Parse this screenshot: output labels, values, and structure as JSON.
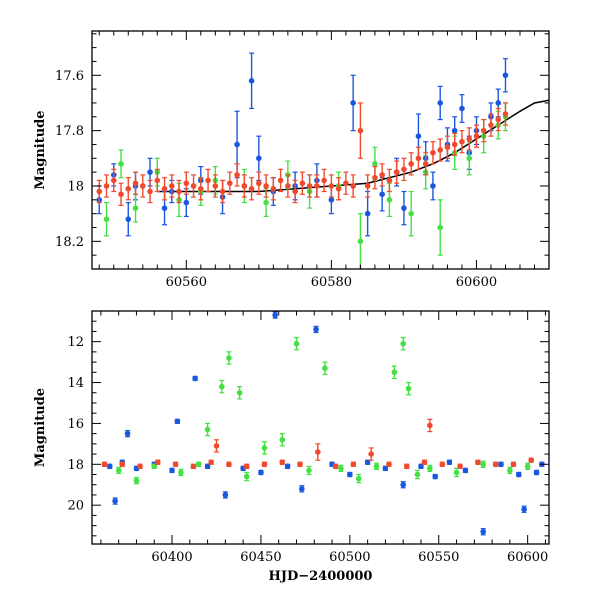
{
  "chart_data": [
    {
      "type": "scatter",
      "title": "",
      "xlabel": "",
      "ylabel": "Magnitude",
      "xlim": [
        60547,
        60610
      ],
      "ylim": [
        18.3,
        17.44
      ],
      "y_inverted": true,
      "x_ticks": [
        60560,
        60580,
        60600
      ],
      "y_ticks": [
        17.6,
        17.8,
        18,
        18.2
      ],
      "x_tick_labels": [
        "60560",
        "60580",
        "60600"
      ],
      "y_tick_labels": [
        "17.6",
        "17.8",
        "18",
        "18.2"
      ],
      "grid": false,
      "legend": "none",
      "series": [
        {
          "color": "#1a57e0",
          "marker": "circle-errorbar",
          "x": [
            60548,
            60550,
            60552,
            60553,
            60555,
            60557,
            60558,
            60560,
            60562,
            60565,
            60567,
            60569,
            60570,
            60572,
            60575,
            60578,
            60580,
            60583,
            60585,
            60587,
            60589,
            60590,
            60592,
            60593,
            60594,
            60595,
            60596,
            60597,
            60598,
            60599,
            60600,
            60602,
            60603,
            60604
          ],
          "y": [
            18.05,
            17.96,
            18.12,
            18.0,
            17.95,
            18.08,
            18.02,
            18.06,
            17.98,
            18.04,
            17.85,
            17.62,
            17.9,
            18.02,
            18.0,
            17.98,
            18.05,
            17.7,
            18.1,
            18.03,
            17.95,
            18.08,
            17.82,
            17.9,
            18.0,
            17.7,
            17.85,
            17.8,
            17.72,
            17.88,
            17.8,
            17.75,
            17.7,
            17.6
          ],
          "err": [
            0.05,
            0.04,
            0.06,
            0.05,
            0.05,
            0.06,
            0.04,
            0.05,
            0.05,
            0.06,
            0.12,
            0.1,
            0.08,
            0.05,
            0.05,
            0.06,
            0.05,
            0.1,
            0.08,
            0.06,
            0.05,
            0.06,
            0.08,
            0.06,
            0.05,
            0.06,
            0.06,
            0.05,
            0.05,
            0.06,
            0.05,
            0.05,
            0.05,
            0.06
          ]
        },
        {
          "color": "#44e044",
          "marker": "circle-errorbar",
          "x": [
            60549,
            60551,
            60553,
            60556,
            60559,
            60562,
            60564,
            60568,
            60571,
            60574,
            60577,
            60581,
            60584,
            60586,
            60588,
            60591,
            60593,
            60595,
            60597,
            60599,
            60601,
            60603,
            60604
          ],
          "y": [
            18.12,
            17.92,
            18.08,
            17.95,
            18.05,
            18.02,
            17.98,
            18.0,
            18.06,
            17.96,
            18.02,
            18.0,
            18.2,
            17.92,
            18.05,
            18.1,
            17.95,
            18.15,
            17.88,
            17.9,
            17.82,
            17.78,
            17.75
          ],
          "err": [
            0.06,
            0.05,
            0.05,
            0.05,
            0.06,
            0.05,
            0.05,
            0.06,
            0.05,
            0.05,
            0.06,
            0.05,
            0.1,
            0.06,
            0.06,
            0.08,
            0.06,
            0.1,
            0.06,
            0.06,
            0.06,
            0.05,
            0.05
          ]
        },
        {
          "color": "#f04a2e",
          "marker": "circle-errorbar",
          "x": [
            60548,
            60549,
            60550,
            60551,
            60552,
            60553,
            60554,
            60555,
            60556,
            60557,
            60558,
            60559,
            60560,
            60561,
            60562,
            60563,
            60564,
            60565,
            60566,
            60567,
            60568,
            60569,
            60570,
            60571,
            60572,
            60573,
            60574,
            60575,
            60576,
            60577,
            60578,
            60579,
            60580,
            60581,
            60582,
            60583,
            60584,
            60585,
            60586,
            60587,
            60588,
            60589,
            60590,
            60591,
            60592,
            60593,
            60594,
            60595,
            60596,
            60597,
            60598,
            60599,
            60600,
            60601,
            60602,
            60603,
            60604
          ],
          "y": [
            18.02,
            18.0,
            17.98,
            18.03,
            18.01,
            17.99,
            18.0,
            18.02,
            17.98,
            18.01,
            18.0,
            18.02,
            17.99,
            18.0,
            18.01,
            17.98,
            18.0,
            18.02,
            17.99,
            17.96,
            18.0,
            18.01,
            17.99,
            18.0,
            18.01,
            17.98,
            18.0,
            18.02,
            17.99,
            18.0,
            18.0,
            17.98,
            18.0,
            18.01,
            17.99,
            18.0,
            17.8,
            18.0,
            17.97,
            17.96,
            17.98,
            17.95,
            17.94,
            17.92,
            17.9,
            17.92,
            17.88,
            17.87,
            17.86,
            17.85,
            17.84,
            17.83,
            17.82,
            17.8,
            17.78,
            17.76,
            17.74
          ],
          "err": [
            0.04,
            0.04,
            0.04,
            0.04,
            0.04,
            0.04,
            0.04,
            0.04,
            0.04,
            0.04,
            0.04,
            0.04,
            0.04,
            0.04,
            0.04,
            0.04,
            0.04,
            0.04,
            0.04,
            0.04,
            0.04,
            0.04,
            0.04,
            0.04,
            0.04,
            0.04,
            0.04,
            0.04,
            0.04,
            0.04,
            0.04,
            0.04,
            0.04,
            0.04,
            0.04,
            0.04,
            0.1,
            0.04,
            0.04,
            0.04,
            0.04,
            0.04,
            0.04,
            0.04,
            0.04,
            0.04,
            0.04,
            0.04,
            0.04,
            0.04,
            0.04,
            0.04,
            0.04,
            0.04,
            0.04,
            0.04,
            0.04
          ]
        }
      ],
      "model_curve": {
        "color": "#000000",
        "x": [
          60556,
          60560,
          60565,
          60570,
          60575,
          60580,
          60585,
          60588,
          60591,
          60594,
          60597,
          60600,
          60603,
          60606,
          60608,
          60610
        ],
        "y": [
          18.02,
          18.02,
          18.02,
          18.02,
          18.01,
          18.0,
          17.99,
          17.97,
          17.95,
          17.92,
          17.88,
          17.83,
          17.78,
          17.73,
          17.7,
          17.69
        ]
      }
    },
    {
      "type": "scatter",
      "title": "",
      "xlabel": "HJD−2400000",
      "ylabel": "Magnitude",
      "xlim": [
        60355,
        60612
      ],
      "ylim": [
        21.9,
        10.5
      ],
      "y_inverted": true,
      "x_ticks": [
        60400,
        60450,
        60500,
        60550,
        60600
      ],
      "y_ticks": [
        12,
        14,
        16,
        18,
        20
      ],
      "x_tick_labels": [
        "60400",
        "60450",
        "60500",
        "60550",
        "60600"
      ],
      "y_tick_labels": [
        "12",
        "14",
        "16",
        "18",
        "20"
      ],
      "grid": false,
      "legend": "none",
      "series": [
        {
          "color": "#1a57e0",
          "marker": "circle-errorbar",
          "x": [
            60365,
            60368,
            60372,
            60375,
            60380,
            60390,
            60400,
            60403,
            60413,
            60420,
            60430,
            60440,
            60450,
            60458,
            60465,
            60473,
            60481,
            60490,
            60500,
            60510,
            60520,
            60530,
            60540,
            60548,
            60556,
            60565,
            60575,
            60585,
            60595,
            60598,
            60605,
            60608
          ],
          "y": [
            18.1,
            19.8,
            17.9,
            16.5,
            18.2,
            18.0,
            18.3,
            15.9,
            13.8,
            18.1,
            19.5,
            18.2,
            18.4,
            10.7,
            18.1,
            19.2,
            11.4,
            18.0,
            18.5,
            17.9,
            18.2,
            19.0,
            18.1,
            18.6,
            17.9,
            18.3,
            21.3,
            18.0,
            18.5,
            20.2,
            18.4,
            18.0
          ],
          "err": [
            0.1,
            0.15,
            0.1,
            0.15,
            0.1,
            0.1,
            0.1,
            0.1,
            0.1,
            0.1,
            0.15,
            0.1,
            0.1,
            0.15,
            0.1,
            0.15,
            0.15,
            0.1,
            0.1,
            0.1,
            0.1,
            0.15,
            0.1,
            0.1,
            0.1,
            0.1,
            0.15,
            0.1,
            0.1,
            0.15,
            0.1,
            0.1
          ]
        },
        {
          "color": "#44e044",
          "marker": "circle-errorbar",
          "x": [
            60370,
            60380,
            60390,
            60405,
            60415,
            60420,
            60428,
            60432,
            60438,
            60442,
            60452,
            60462,
            60470,
            60477,
            60486,
            60495,
            60505,
            60515,
            60525,
            60530,
            60533,
            60538,
            60545,
            60560,
            60575,
            60590,
            60600
          ],
          "y": [
            18.3,
            18.8,
            18.1,
            18.4,
            18.0,
            16.3,
            14.2,
            12.8,
            14.5,
            18.6,
            17.2,
            16.8,
            12.1,
            18.3,
            13.3,
            18.2,
            18.7,
            18.1,
            13.5,
            12.1,
            14.3,
            18.5,
            18.2,
            18.4,
            18.0,
            18.3,
            18.1
          ],
          "err": [
            0.15,
            0.15,
            0.1,
            0.15,
            0.1,
            0.3,
            0.3,
            0.3,
            0.3,
            0.2,
            0.3,
            0.3,
            0.3,
            0.2,
            0.3,
            0.15,
            0.2,
            0.15,
            0.3,
            0.3,
            0.3,
            0.2,
            0.15,
            0.2,
            0.15,
            0.15,
            0.15
          ]
        },
        {
          "color": "#f04a2e",
          "marker": "circle-errorbar",
          "x": [
            60362,
            60372,
            60382,
            60392,
            60402,
            60412,
            60422,
            60425,
            60432,
            60442,
            60452,
            60462,
            60472,
            60482,
            60492,
            60502,
            60512,
            60522,
            60532,
            60542,
            60545,
            60552,
            60562,
            60572,
            60582,
            60592,
            60602
          ],
          "y": [
            18.0,
            18.0,
            18.1,
            17.9,
            18.0,
            18.1,
            17.9,
            17.1,
            18.0,
            18.1,
            18.0,
            17.9,
            18.0,
            17.4,
            18.1,
            18.0,
            17.5,
            18.0,
            18.1,
            17.9,
            16.1,
            18.0,
            18.1,
            17.9,
            18.0,
            18.0,
            17.8
          ],
          "err": [
            0.1,
            0.1,
            0.1,
            0.1,
            0.1,
            0.1,
            0.1,
            0.3,
            0.1,
            0.1,
            0.1,
            0.1,
            0.1,
            0.4,
            0.1,
            0.1,
            0.3,
            0.1,
            0.1,
            0.1,
            0.3,
            0.1,
            0.1,
            0.1,
            0.1,
            0.1,
            0.1
          ]
        }
      ]
    }
  ]
}
